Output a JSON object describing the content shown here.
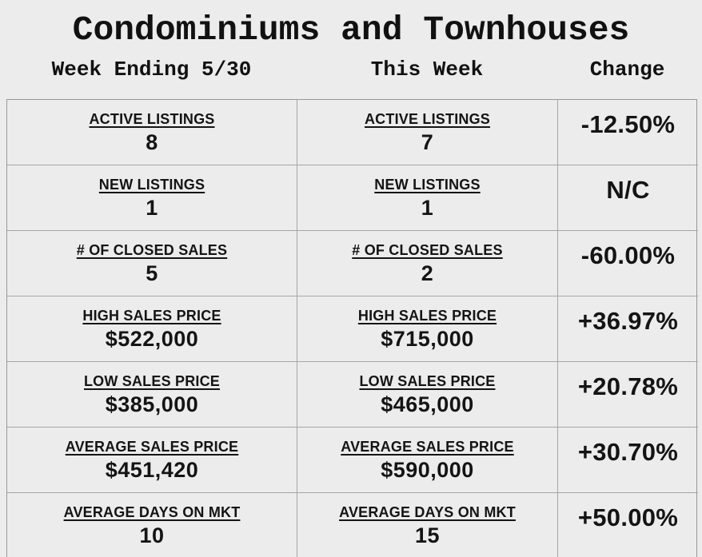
{
  "title": "Condominiums and Townhouses",
  "headers": {
    "prev": "Week Ending 5/30",
    "curr": "This Week",
    "change": "Change"
  },
  "rows": [
    {
      "metric": "ACTIVE LISTINGS",
      "prev": "8",
      "curr": "7",
      "change": "-12.50%"
    },
    {
      "metric": "NEW LISTINGS",
      "prev": "1",
      "curr": "1",
      "change": "N/C"
    },
    {
      "metric": "# OF CLOSED SALES",
      "prev": "5",
      "curr": "2",
      "change": "-60.00%"
    },
    {
      "metric": "HIGH SALES PRICE",
      "prev": "$522,000",
      "curr": "$715,000",
      "change": "+36.97%"
    },
    {
      "metric": "LOW SALES PRICE",
      "prev": "$385,000",
      "curr": "$465,000",
      "change": "+20.78%"
    },
    {
      "metric": "AVERAGE SALES PRICE",
      "prev": "$451,420",
      "curr": "$590,000",
      "change": "+30.70%"
    },
    {
      "metric": "AVERAGE DAYS ON MKT",
      "prev": "10",
      "curr": "15",
      "change": "+50.00%"
    }
  ],
  "colors": {
    "background": "#ececec",
    "border_outer": "#979797",
    "border_inner": "#a6a6a6",
    "text": "#141414"
  },
  "chart_data": {
    "type": "table",
    "title": "Condominiums and Townhouses",
    "columns": [
      "Week Ending 5/30",
      "This Week",
      "Change"
    ],
    "metrics": [
      "ACTIVE LISTINGS",
      "NEW LISTINGS",
      "# OF CLOSED SALES",
      "HIGH SALES PRICE",
      "LOW SALES PRICE",
      "AVERAGE SALES PRICE",
      "AVERAGE DAYS ON MKT"
    ],
    "series": [
      {
        "name": "Week Ending 5/30",
        "values": [
          8,
          1,
          5,
          522000,
          385000,
          451420,
          10
        ]
      },
      {
        "name": "This Week",
        "values": [
          7,
          1,
          2,
          715000,
          465000,
          590000,
          15
        ]
      },
      {
        "name": "Change",
        "values": [
          "-12.50%",
          "N/C",
          "-60.00%",
          "+36.97%",
          "+20.78%",
          "+30.70%",
          "+50.00%"
        ]
      }
    ],
    "layout": "three-column comparison table, labels underlined above values, last row cropped at bottom edge"
  }
}
